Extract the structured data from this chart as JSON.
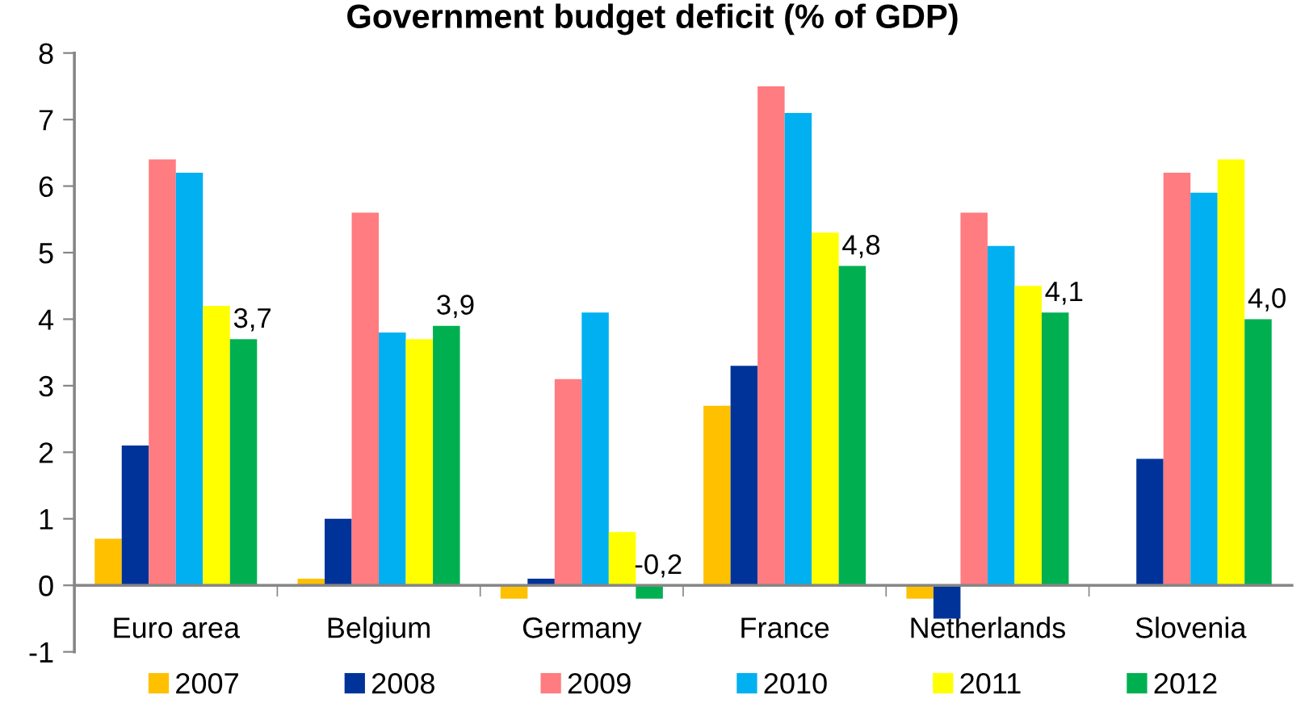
{
  "chart_data": {
    "type": "bar",
    "title": "Government budget deficit (% of GDP)",
    "categories": [
      "Euro area",
      "Belgium",
      "Germany",
      "France",
      "Netherlands",
      "Slovenia"
    ],
    "series": [
      {
        "name": "2007",
        "color": "#ffc000",
        "values": [
          0.7,
          0.1,
          -0.2,
          2.7,
          -0.2,
          null
        ]
      },
      {
        "name": "2008",
        "color": "#003399",
        "values": [
          2.1,
          1.0,
          0.1,
          3.3,
          -0.5,
          1.9
        ]
      },
      {
        "name": "2009",
        "color": "#ff7c80",
        "values": [
          6.4,
          5.6,
          3.1,
          7.5,
          5.6,
          6.2
        ]
      },
      {
        "name": "2010",
        "color": "#00b0f0",
        "values": [
          6.2,
          3.8,
          4.1,
          7.1,
          5.1,
          5.9
        ]
      },
      {
        "name": "2011",
        "color": "#ffff00",
        "values": [
          4.2,
          3.7,
          0.8,
          5.3,
          4.5,
          6.4
        ]
      },
      {
        "name": "2012",
        "color": "#00b050",
        "values": [
          3.7,
          3.9,
          -0.2,
          4.8,
          4.1,
          4.0
        ],
        "value_labels": [
          "3,7",
          "3,9",
          "-0,2",
          "4,8",
          "4,1",
          "4,0"
        ]
      }
    ],
    "ylim": [
      -1,
      8
    ],
    "yticks": [
      -1,
      0,
      1,
      2,
      3,
      4,
      5,
      6,
      7,
      8
    ],
    "grid": false,
    "legend": "bottom"
  }
}
